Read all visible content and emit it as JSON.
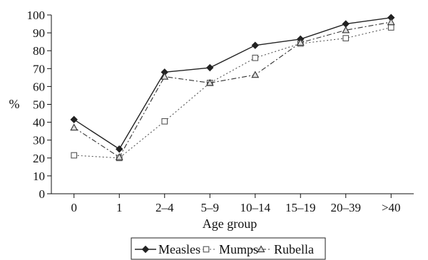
{
  "chart_data": {
    "type": "line",
    "xlabel": "Age group",
    "ylabel": "%",
    "categories": [
      "0",
      "1",
      "2–4",
      "5–9",
      "10–14",
      "15–19",
      "20–39",
      ">40"
    ],
    "ylim": [
      0,
      100
    ],
    "yticks": [
      0,
      10,
      20,
      30,
      40,
      50,
      60,
      70,
      80,
      90,
      100
    ],
    "grid": false,
    "legend_position": "bottom",
    "series": [
      {
        "name": "Measles",
        "values": [
          41.5,
          25,
          68,
          70.5,
          83,
          86.5,
          95,
          98.5
        ],
        "marker": "diamond-filled",
        "line_style": "solid",
        "color": "#222222"
      },
      {
        "name": "Mumps",
        "values": [
          21.5,
          20,
          40.5,
          62,
          76,
          84,
          87,
          93
        ],
        "marker": "square-open",
        "line_style": "dotted",
        "color": "#555555"
      },
      {
        "name": "Rubella",
        "values": [
          37,
          20.5,
          65.5,
          62,
          66.5,
          84.5,
          91.5,
          96
        ],
        "marker": "triangle-open",
        "line_style": "dashdot",
        "color": "#333333"
      }
    ]
  }
}
